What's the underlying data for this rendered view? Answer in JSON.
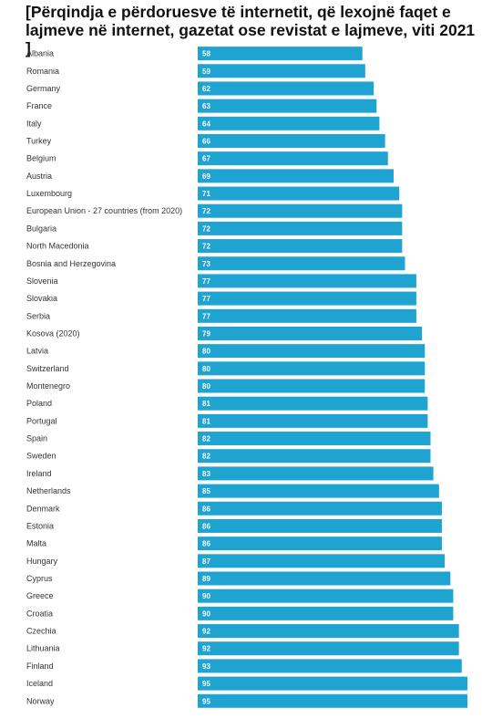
{
  "chart_data": {
    "type": "bar",
    "orientation": "horizontal",
    "title": "[Përqindja e përdoruesve të internetit, që lexojnë faqet e lajmeve në internet, gazetat ose revistat e lajmeve, viti 2021 ]",
    "xlabel": "",
    "ylabel": "",
    "xlim": [
      0,
      95
    ],
    "grid": false,
    "bar_color": "#1fa3d1",
    "categories": [
      "Albania",
      "Romania",
      "Germany",
      "France",
      "Italy",
      "Turkey",
      "Belgium",
      "Austria",
      "Luxembourg",
      "European Union - 27 countries (from 2020)",
      "Bulgaria",
      "North Macedonia",
      "Bosnia and Herzegovina",
      "Slovenia",
      "Slovakia",
      "Serbia",
      "Kosova (2020)",
      "Latvia",
      "Switzerland",
      "Montenegro",
      "Poland",
      "Portugal",
      "Spain",
      "Sweden",
      "Ireland",
      "Netherlands",
      "Denmark",
      "Estonia",
      "Malta",
      "Hungary",
      "Cyprus",
      "Greece",
      "Croatia",
      "Czechia",
      "Lithuania",
      "Finland",
      "Iceland",
      "Norway"
    ],
    "values": [
      58,
      59,
      62,
      63,
      64,
      66,
      67,
      69,
      71,
      72,
      72,
      72,
      73,
      77,
      77,
      77,
      79,
      80,
      80,
      80,
      81,
      81,
      82,
      82,
      83,
      85,
      86,
      86,
      86,
      87,
      89,
      90,
      90,
      92,
      92,
      93,
      95,
      95
    ]
  }
}
